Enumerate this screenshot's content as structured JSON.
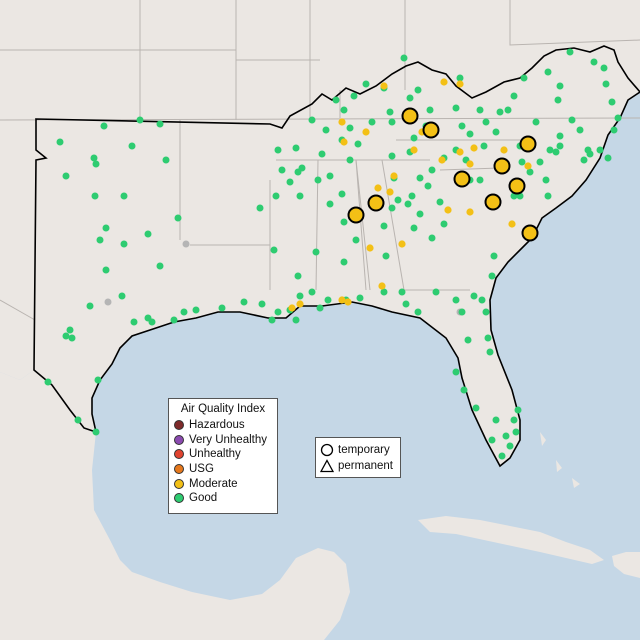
{
  "legend": {
    "title": "Air Quality Index",
    "categories": [
      {
        "label": "Hazardous",
        "color": "#7e2a2a"
      },
      {
        "label": "Very Unhealthy",
        "color": "#8b4ab0"
      },
      {
        "label": "Unhealthy",
        "color": "#e0432f"
      },
      {
        "label": "USG",
        "color": "#e6781c"
      },
      {
        "label": "Moderate",
        "color": "#f3c016"
      },
      {
        "label": "Good",
        "color": "#2ecc71"
      }
    ]
  },
  "site_types": [
    {
      "label": "temporary",
      "shape": "circle"
    },
    {
      "label": "permanent",
      "shape": "triangle"
    }
  ],
  "colors": {
    "water": "#c5d7e6",
    "land": "#ebe7e3",
    "state_border": "#b9b4b0",
    "region_outline": "#000000",
    "inactive_site": "#b5b5b5"
  }
}
